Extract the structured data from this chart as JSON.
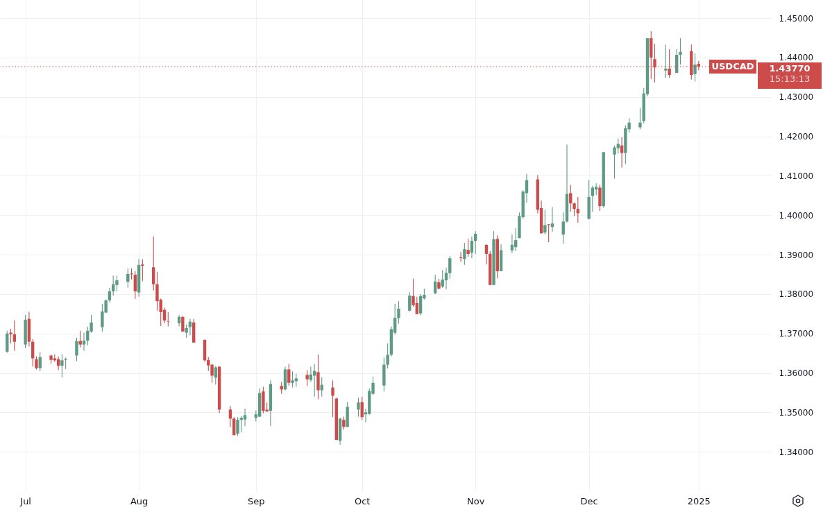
{
  "chart_data": {
    "type": "candlestick",
    "x": [
      "2024-06-26",
      "2024-06-27",
      "2024-06-28",
      "2024-07-01",
      "2024-07-02",
      "2024-07-03",
      "2024-07-04",
      "2024-07-05",
      "2024-07-08",
      "2024-07-09",
      "2024-07-10",
      "2024-07-11",
      "2024-07-12",
      "2024-07-15",
      "2024-07-16",
      "2024-07-17",
      "2024-07-18",
      "2024-07-19",
      "2024-07-22",
      "2024-07-23",
      "2024-07-24",
      "2024-07-25",
      "2024-07-26",
      "2024-07-29",
      "2024-07-30",
      "2024-07-31",
      "2024-08-01",
      "2024-08-02",
      "2024-08-05",
      "2024-08-06",
      "2024-08-07",
      "2024-08-08",
      "2024-08-09",
      "2024-08-12",
      "2024-08-13",
      "2024-08-14",
      "2024-08-15",
      "2024-08-16",
      "2024-08-19",
      "2024-08-20",
      "2024-08-21",
      "2024-08-22",
      "2024-08-23",
      "2024-08-26",
      "2024-08-27",
      "2024-08-28",
      "2024-08-29",
      "2024-08-30",
      "2024-09-02",
      "2024-09-03",
      "2024-09-04",
      "2024-09-05",
      "2024-09-06",
      "2024-09-09",
      "2024-09-10",
      "2024-09-11",
      "2024-09-12",
      "2024-09-13",
      "2024-09-16",
      "2024-09-17",
      "2024-09-18",
      "2024-09-19",
      "2024-09-20",
      "2024-09-23",
      "2024-09-24",
      "2024-09-25",
      "2024-09-26",
      "2024-09-27",
      "2024-09-30",
      "2024-10-01",
      "2024-10-02",
      "2024-10-03",
      "2024-10-04",
      "2024-10-07",
      "2024-10-08",
      "2024-10-09",
      "2024-10-10",
      "2024-10-11",
      "2024-10-14",
      "2024-10-15",
      "2024-10-16",
      "2024-10-17",
      "2024-10-18",
      "2024-10-21",
      "2024-10-22",
      "2024-10-23",
      "2024-10-24",
      "2024-10-25",
      "2024-10-28",
      "2024-10-29",
      "2024-10-30",
      "2024-10-31",
      "2024-11-01",
      "2024-11-04",
      "2024-11-05",
      "2024-11-06",
      "2024-11-07",
      "2024-11-08",
      "2024-11-11",
      "2024-11-12",
      "2024-11-13",
      "2024-11-14",
      "2024-11-15",
      "2024-11-18",
      "2024-11-19",
      "2024-11-20",
      "2024-11-21",
      "2024-11-22",
      "2024-11-25",
      "2024-11-26",
      "2024-11-27",
      "2024-11-28",
      "2024-11-29",
      "2024-12-02",
      "2024-12-03",
      "2024-12-04",
      "2024-12-05",
      "2024-12-06",
      "2024-12-09",
      "2024-12-10",
      "2024-12-11",
      "2024-12-12",
      "2024-12-13",
      "2024-12-16",
      "2024-12-17",
      "2024-12-18",
      "2024-12-19",
      "2024-12-20",
      "2024-12-23",
      "2024-12-24",
      "2024-12-26",
      "2024-12-27",
      "2024-12-30",
      "2024-12-31",
      "2025-01-01"
    ],
    "ohlc": [
      [
        1.3654,
        1.3707,
        1.3651,
        1.37
      ],
      [
        1.3702,
        1.3712,
        1.3675,
        1.3698
      ],
      [
        1.3698,
        1.3733,
        1.3656,
        1.3679
      ],
      [
        1.3672,
        1.3747,
        1.3663,
        1.3735
      ],
      [
        1.3737,
        1.3755,
        1.3667,
        1.3679
      ],
      [
        1.3679,
        1.3686,
        1.3616,
        1.3637
      ],
      [
        1.3635,
        1.3642,
        1.3609,
        1.3612
      ],
      [
        1.3612,
        1.3653,
        1.3604,
        1.364
      ],
      [
        1.3644,
        1.3647,
        1.3623,
        1.3633
      ],
      [
        1.3637,
        1.3647,
        1.3628,
        1.3632
      ],
      [
        1.3635,
        1.3642,
        1.3607,
        1.3618
      ],
      [
        1.3618,
        1.3647,
        1.3588,
        1.3632
      ],
      [
        1.3633,
        1.3639,
        1.361,
        1.3635
      ],
      [
        1.3644,
        1.3689,
        1.363,
        1.3681
      ],
      [
        1.3681,
        1.3707,
        1.3665,
        1.3672
      ],
      [
        1.3672,
        1.3702,
        1.3656,
        1.3682
      ],
      [
        1.3682,
        1.3717,
        1.367,
        1.3707
      ],
      [
        1.3705,
        1.3747,
        1.3702,
        1.3728
      ],
      [
        1.3716,
        1.3775,
        1.3705,
        1.3756
      ],
      [
        1.3753,
        1.3786,
        1.3752,
        1.3784
      ],
      [
        1.3784,
        1.3816,
        1.3779,
        1.3807
      ],
      [
        1.3807,
        1.3847,
        1.3796,
        1.3825
      ],
      [
        1.3823,
        1.3847,
        1.3807,
        1.3835
      ],
      [
        1.3831,
        1.3865,
        1.3816,
        1.3851
      ],
      [
        1.3852,
        1.3865,
        1.3837,
        1.385
      ],
      [
        1.3849,
        1.3858,
        1.3788,
        1.3807
      ],
      [
        1.3804,
        1.3889,
        1.3793,
        1.3874
      ],
      [
        1.3875,
        1.3888,
        1.3833,
        1.3872
      ],
      [
        1.3868,
        1.3946,
        1.3809,
        1.3825
      ],
      [
        1.3825,
        1.3856,
        1.3758,
        1.3782
      ],
      [
        1.3786,
        1.3789,
        1.3719,
        1.3754
      ],
      [
        1.376,
        1.3765,
        1.3726,
        1.3733
      ],
      [
        1.3731,
        1.3754,
        1.3718,
        1.373
      ],
      [
        1.3726,
        1.3747,
        1.3718,
        1.3742
      ],
      [
        1.3742,
        1.3745,
        1.3705,
        1.3705
      ],
      [
        1.3702,
        1.3723,
        1.3689,
        1.3714
      ],
      [
        1.3716,
        1.3737,
        1.3695,
        1.373
      ],
      [
        1.3728,
        1.3737,
        1.3677,
        1.3677
      ],
      [
        1.3684,
        1.3684,
        1.3628,
        1.3632
      ],
      [
        1.3633,
        1.364,
        1.3605,
        1.3619
      ],
      [
        1.3621,
        1.3623,
        1.3575,
        1.3593
      ],
      [
        1.3588,
        1.3618,
        1.357,
        1.3614
      ],
      [
        1.3616,
        1.3616,
        1.3498,
        1.3507
      ],
      [
        1.3507,
        1.3516,
        1.3463,
        1.3484
      ],
      [
        1.3484,
        1.3488,
        1.3442,
        1.3442
      ],
      [
        1.3446,
        1.3488,
        1.344,
        1.3481
      ],
      [
        1.3481,
        1.349,
        1.3449,
        1.3486
      ],
      [
        1.3482,
        1.3509,
        1.3465,
        1.3493
      ],
      [
        1.3486,
        1.3505,
        1.3477,
        1.3495
      ],
      [
        1.3489,
        1.3561,
        1.3489,
        1.3549
      ],
      [
        1.3553,
        1.3565,
        1.3498,
        1.3504
      ],
      [
        1.3507,
        1.3525,
        1.3502,
        1.3502
      ],
      [
        1.3504,
        1.3581,
        1.3465,
        1.3572
      ],
      [
        1.3567,
        1.3577,
        1.3547,
        1.3558
      ],
      [
        1.3558,
        1.3616,
        1.3556,
        1.3609
      ],
      [
        1.3609,
        1.3623,
        1.3567,
        1.3575
      ],
      [
        1.3575,
        1.3604,
        1.3563,
        1.3581
      ],
      [
        1.3579,
        1.3598,
        1.3565,
        1.3586
      ],
      [
        1.3595,
        1.3607,
        1.3567,
        1.3584
      ],
      [
        1.3582,
        1.3616,
        1.3577,
        1.3596
      ],
      [
        1.3593,
        1.3623,
        1.354,
        1.3605
      ],
      [
        1.3602,
        1.3647,
        1.3533,
        1.3556
      ],
      [
        1.3556,
        1.3589,
        1.354,
        1.357
      ],
      [
        1.3563,
        1.3581,
        1.3488,
        1.3542
      ],
      [
        1.3535,
        1.3537,
        1.343,
        1.343
      ],
      [
        1.3428,
        1.3486,
        1.3418,
        1.3484
      ],
      [
        1.3481,
        1.3489,
        1.3456,
        1.3463
      ],
      [
        1.3463,
        1.3526,
        1.3463,
        1.3514
      ],
      [
        1.3507,
        1.3537,
        1.3489,
        1.3525
      ],
      [
        1.3526,
        1.354,
        1.3481,
        1.3488
      ],
      [
        1.3495,
        1.3509,
        1.3474,
        1.35
      ],
      [
        1.3496,
        1.3561,
        1.3494,
        1.3554
      ],
      [
        1.3547,
        1.3591,
        1.3544,
        1.3575
      ],
      [
        1.3568,
        1.3639,
        1.3553,
        1.3621
      ],
      [
        1.3621,
        1.3675,
        1.3611,
        1.3646
      ],
      [
        1.3646,
        1.3718,
        1.3642,
        1.3711
      ],
      [
        1.3702,
        1.3775,
        1.3697,
        1.374
      ],
      [
        1.3739,
        1.3782,
        1.3725,
        1.3763
      ],
      [
        1.3758,
        1.3805,
        1.3756,
        1.3796
      ],
      [
        1.3795,
        1.3839,
        1.3768,
        1.3772
      ],
      [
        1.3777,
        1.3793,
        1.3749,
        1.3749
      ],
      [
        1.3751,
        1.38,
        1.3746,
        1.3795
      ],
      [
        1.3789,
        1.3814,
        1.3786,
        1.3798
      ],
      [
        1.3802,
        1.3849,
        1.38,
        1.3832
      ],
      [
        1.383,
        1.3839,
        1.3812,
        1.3814
      ],
      [
        1.3819,
        1.3861,
        1.3816,
        1.3837
      ],
      [
        1.3835,
        1.3867,
        1.3812,
        1.3854
      ],
      [
        1.3853,
        1.3896,
        1.3839,
        1.3891
      ],
      [
        1.3893,
        1.3907,
        1.3882,
        1.3891
      ],
      [
        1.3889,
        1.393,
        1.3874,
        1.3914
      ],
      [
        1.3912,
        1.394,
        1.3895,
        1.3902
      ],
      [
        1.3905,
        1.3946,
        1.3891,
        1.3935
      ],
      [
        1.3935,
        1.396,
        1.3902,
        1.3953
      ],
      [
        1.3925,
        1.3926,
        1.3875,
        1.3902
      ],
      [
        1.3902,
        1.3909,
        1.3823,
        1.3823
      ],
      [
        1.3823,
        1.396,
        1.3823,
        1.3939
      ],
      [
        1.394,
        1.3949,
        1.384,
        1.3858
      ],
      [
        1.3858,
        1.3926,
        1.3858,
        1.3911
      ],
      [
        1.3911,
        1.3951,
        1.3904,
        1.3925
      ],
      [
        1.3919,
        1.3967,
        1.3909,
        1.3937
      ],
      [
        1.3942,
        1.4007,
        1.3942,
        1.3998
      ],
      [
        1.3995,
        1.4063,
        1.3991,
        1.406
      ],
      [
        1.4056,
        1.4105,
        1.4032,
        1.4089
      ],
      [
        1.4091,
        1.4102,
        1.4005,
        1.4014
      ],
      [
        1.4018,
        1.4037,
        1.3954,
        1.3954
      ],
      [
        1.3956,
        1.4014,
        1.3951,
        1.3975
      ],
      [
        1.3977,
        1.3977,
        1.3932,
        1.3975
      ],
      [
        1.397,
        1.4021,
        1.3958,
        1.3979
      ],
      [
        1.3951,
        1.4007,
        1.3928,
        1.3984
      ],
      [
        1.3984,
        1.4179,
        1.3981,
        1.4054
      ],
      [
        1.4056,
        1.4077,
        1.4009,
        1.403
      ],
      [
        1.403,
        1.4032,
        1.3998,
        1.4016
      ],
      [
        1.4016,
        1.4046,
        1.3981,
        1.4005
      ],
      [
        1.3991,
        1.4089,
        1.3989,
        1.4046
      ],
      [
        1.4049,
        1.4075,
        1.4009,
        1.407
      ],
      [
        1.4065,
        1.4081,
        1.4051,
        1.4072
      ],
      [
        1.407,
        1.4077,
        1.4011,
        1.4023
      ],
      [
        1.4023,
        1.416,
        1.4019,
        1.416
      ],
      [
        1.4154,
        1.4177,
        1.4093,
        1.4172
      ],
      [
        1.417,
        1.4195,
        1.4156,
        1.4181
      ],
      [
        1.4177,
        1.4198,
        1.4121,
        1.4158
      ],
      [
        1.4158,
        1.4228,
        1.413,
        1.4221
      ],
      [
        1.4218,
        1.4246,
        1.4209,
        1.4235
      ],
      [
        1.4223,
        1.4272,
        1.4218,
        1.4235
      ],
      [
        1.4239,
        1.4323,
        1.4233,
        1.4309
      ],
      [
        1.4307,
        1.4449,
        1.4302,
        1.4449
      ],
      [
        1.4449,
        1.4467,
        1.4346,
        1.44
      ],
      [
        1.4396,
        1.4435,
        1.4337,
        1.4375
      ],
      [
        1.4367,
        1.4433,
        1.4349,
        1.4372
      ],
      [
        1.4372,
        1.4421,
        1.4349,
        1.4356
      ],
      [
        1.4361,
        1.4421,
        1.4361,
        1.4407
      ],
      [
        1.4407,
        1.4449,
        1.4382,
        1.4414
      ],
      [
        1.4416,
        1.4433,
        1.4344,
        1.4356
      ],
      [
        1.4358,
        1.4411,
        1.4339,
        1.4382
      ],
      [
        1.4384,
        1.4391,
        1.4368,
        1.4377
      ]
    ],
    "colors": [
      "#5f9b84",
      "#cc4b4b",
      "#cc4b4b",
      "#5f9b84",
      "#cc4b4b",
      "#cc4b4b",
      "#cc4b4b",
      "#5f9b84",
      "#cc4b4b",
      "#cc4b4b",
      "#cc4b4b",
      "#5f9b84",
      "#5f9b84",
      "#5f9b84",
      "#cc4b4b",
      "#5f9b84",
      "#5f9b84",
      "#5f9b84",
      "#5f9b84",
      "#5f9b84",
      "#5f9b84",
      "#5f9b84",
      "#5f9b84",
      "#5f9b84",
      "#cc4b4b",
      "#cc4b4b",
      "#5f9b84",
      "#cc4b4b",
      "#cc4b4b",
      "#cc4b4b",
      "#cc4b4b",
      "#cc4b4b",
      "#cc4b4b",
      "#5f9b84",
      "#cc4b4b",
      "#5f9b84",
      "#5f9b84",
      "#cc4b4b",
      "#cc4b4b",
      "#cc4b4b",
      "#cc4b4b",
      "#5f9b84",
      "#cc4b4b",
      "#cc4b4b",
      "#cc4b4b",
      "#5f9b84",
      "#5f9b84",
      "#5f9b84",
      "#5f9b84",
      "#5f9b84",
      "#cc4b4b",
      "#cc4b4b",
      "#5f9b84",
      "#cc4b4b",
      "#5f9b84",
      "#cc4b4b",
      "#5f9b84",
      "#5f9b84",
      "#cc4b4b",
      "#5f9b84",
      "#5f9b84",
      "#cc4b4b",
      "#5f9b84",
      "#cc4b4b",
      "#cc4b4b",
      "#5f9b84",
      "#cc4b4b",
      "#5f9b84",
      "#5f9b84",
      "#cc4b4b",
      "#5f9b84",
      "#5f9b84",
      "#5f9b84",
      "#5f9b84",
      "#5f9b84",
      "#5f9b84",
      "#5f9b84",
      "#5f9b84",
      "#5f9b84",
      "#cc4b4b",
      "#cc4b4b",
      "#5f9b84",
      "#5f9b84",
      "#5f9b84",
      "#cc4b4b",
      "#5f9b84",
      "#5f9b84",
      "#5f9b84",
      "#cc4b4b",
      "#5f9b84",
      "#cc4b4b",
      "#5f9b84",
      "#5f9b84",
      "#cc4b4b",
      "#cc4b4b",
      "#5f9b84",
      "#cc4b4b",
      "#5f9b84",
      "#5f9b84",
      "#5f9b84",
      "#5f9b84",
      "#5f9b84",
      "#5f9b84",
      "#cc4b4b",
      "#cc4b4b",
      "#5f9b84",
      "#cc4b4b",
      "#5f9b84",
      "#5f9b84",
      "#5f9b84",
      "#cc4b4b",
      "#cc4b4b",
      "#cc4b4b",
      "#5f9b84",
      "#5f9b84",
      "#5f9b84",
      "#cc4b4b",
      "#5f9b84",
      "#5f9b84",
      "#5f9b84",
      "#cc4b4b",
      "#5f9b84",
      "#5f9b84",
      "#5f9b84",
      "#5f9b84",
      "#5f9b84",
      "#cc4b4b",
      "#cc4b4b",
      "#5f9b84",
      "#cc4b4b",
      "#5f9b84",
      "#5f9b84",
      "#cc4b4b",
      "#5f9b84",
      "#cc4b4b"
    ],
    "xlim": [
      "2024-06-25",
      "2025-01-20"
    ],
    "ylim": [
      1.33,
      1.4546
    ],
    "yticks": [
      {
        "value": 1.34,
        "label": "1.34000"
      },
      {
        "value": 1.35,
        "label": "1.35000"
      },
      {
        "value": 1.36,
        "label": "1.36000"
      },
      {
        "value": 1.37,
        "label": "1.37000"
      },
      {
        "value": 1.38,
        "label": "1.38000"
      },
      {
        "value": 1.39,
        "label": "1.39000"
      },
      {
        "value": 1.4,
        "label": "1.40000"
      },
      {
        "value": 1.41,
        "label": "1.41000"
      },
      {
        "value": 1.42,
        "label": "1.42000"
      },
      {
        "value": 1.43,
        "label": "1.43000"
      },
      {
        "value": 1.44,
        "label": "1.44000"
      },
      {
        "value": 1.45,
        "label": "1.45000"
      }
    ],
    "xticks": [
      {
        "value": "2024-07-01",
        "label": "Jul"
      },
      {
        "value": "2024-08-01",
        "label": "Aug"
      },
      {
        "value": "2024-09-02",
        "label": "Sep"
      },
      {
        "value": "2024-10-01",
        "label": "Oct"
      },
      {
        "value": "2024-11-01",
        "label": "Nov"
      },
      {
        "value": "2024-12-02",
        "label": "Dec"
      },
      {
        "value": "2025-01-01",
        "label": "2025"
      }
    ],
    "grid": true,
    "ref_lines": [
      {
        "axis": "y",
        "value": 1.4377,
        "label": "USDCAD",
        "color": "#cc4b4b",
        "line_style": "dotted"
      }
    ],
    "annotations": [
      "1.43770",
      "15:13:13"
    ]
  }
}
